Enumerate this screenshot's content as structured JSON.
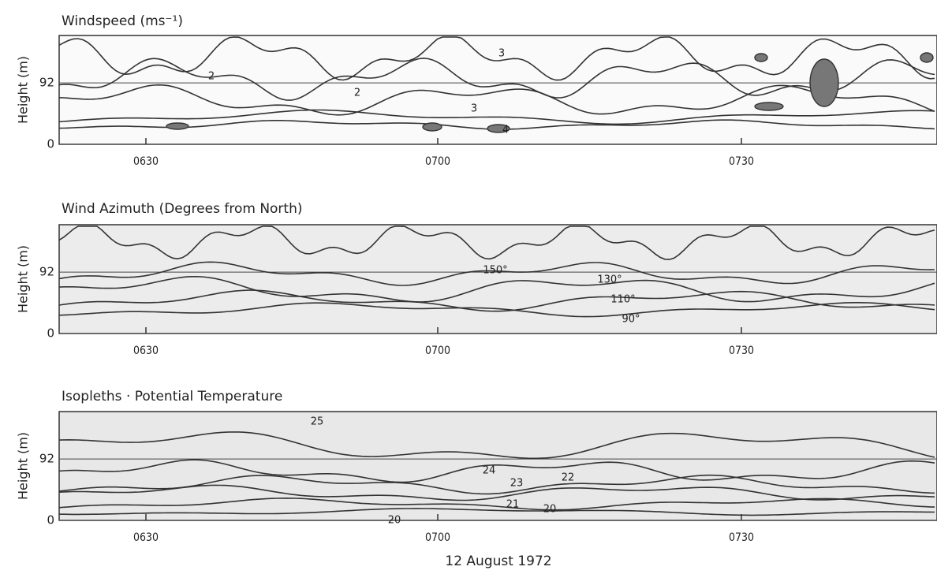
{
  "chart_data": [
    {
      "type": "contour",
      "title": "Windspeed  (ms⁻¹)",
      "y_label": "Height (m)",
      "ylim": [
        0,
        163
      ],
      "yticks": [
        0,
        92
      ],
      "x_tick_labels": [
        "0630",
        "0700",
        "0730"
      ],
      "contour_labels": [
        "2",
        "2",
        "3",
        "3",
        "4"
      ]
    },
    {
      "type": "contour",
      "title": "Wind Azimuth (Degrees from North)",
      "y_label": "Height (m)",
      "ylim": [
        0,
        163
      ],
      "yticks": [
        0,
        92
      ],
      "x_tick_labels": [
        "0630",
        "0700",
        "0730"
      ],
      "contour_labels": [
        "150°",
        "130°",
        "110°",
        "90°"
      ]
    },
    {
      "type": "contour",
      "title": "Isopleths · Potential Temperature",
      "y_label": "Height (m)",
      "ylim": [
        0,
        163
      ],
      "yticks": [
        0,
        92
      ],
      "x_tick_labels": [
        "0630",
        "0700",
        "0730"
      ],
      "contour_labels": [
        "25",
        "24",
        "23",
        "22",
        "21",
        "20",
        "20"
      ]
    }
  ],
  "footer": {
    "x_label": "12 August 1972"
  }
}
